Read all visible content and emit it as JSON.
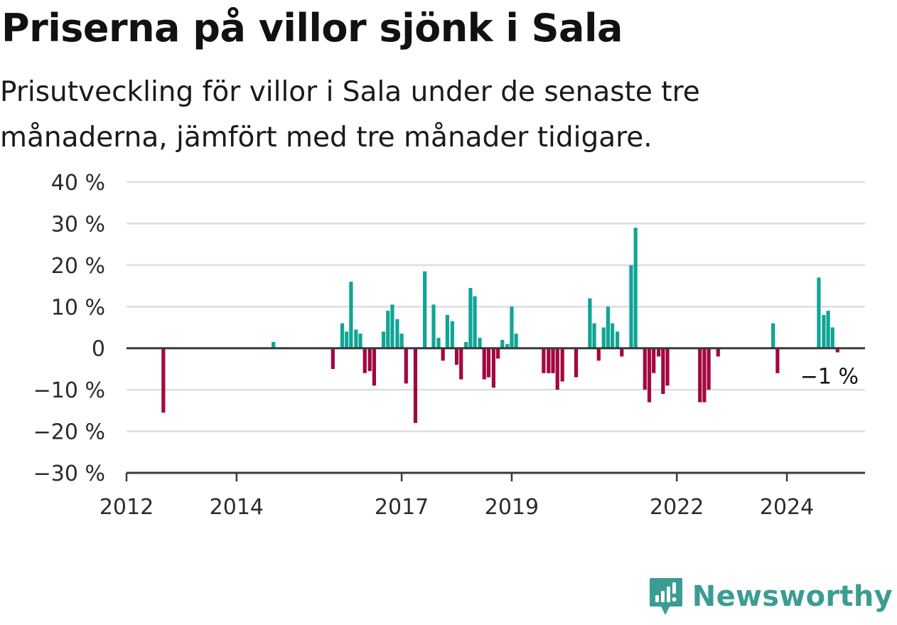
{
  "title": "Priserna på villor sjönk i Sala",
  "subtitle": "Prisutveckling för villor i Sala under de senaste tre månaderna, jämfört med tre månader tidigare.",
  "brand": {
    "name": "Newsworthy"
  },
  "colors": {
    "positive": "#0fa595",
    "negative": "#a3073f",
    "grid": "#dedede",
    "axis": "#3a3a3a",
    "brand": "#3b9c93"
  },
  "chart_data": {
    "type": "bar",
    "title": "",
    "xlabel": "",
    "ylabel": "",
    "ylim": [
      -30,
      40
    ],
    "xlim": [
      2012.0,
      2025.42
    ],
    "y_ticks": [
      40,
      30,
      20,
      10,
      0,
      -10,
      -20,
      -30
    ],
    "y_tick_labels": [
      "40 %",
      "30 %",
      "20 %",
      "10 %",
      "0",
      "−10 %",
      "−20 %",
      "−30 %"
    ],
    "x_ticks": [
      2012,
      2014,
      2017,
      2019,
      2022,
      2024
    ],
    "x_tick_labels": [
      "2012",
      "2014",
      "2017",
      "2019",
      "2022",
      "2024"
    ],
    "grid": true,
    "last_value_label": "−1 %",
    "series": [
      {
        "x": [
          2012.67,
          2014.67,
          2015.75,
          2015.92,
          2016.0,
          2016.08,
          2016.17,
          2016.25,
          2016.33,
          2016.42,
          2016.5,
          2016.67,
          2016.75,
          2016.83,
          2016.92,
          2017.0,
          2017.08,
          2017.25,
          2017.42,
          2017.58,
          2017.67,
          2017.75,
          2017.83,
          2017.92,
          2018.0,
          2018.08,
          2018.17,
          2018.25,
          2018.33,
          2018.42,
          2018.5,
          2018.58,
          2018.67,
          2018.75,
          2018.83,
          2018.92,
          2019.0,
          2019.08,
          2019.58,
          2019.67,
          2019.75,
          2019.83,
          2019.92,
          2020.17,
          2020.42,
          2020.5,
          2020.58,
          2020.67,
          2020.75,
          2020.83,
          2020.92,
          2021.0,
          2021.17,
          2021.25,
          2021.42,
          2021.5,
          2021.58,
          2021.67,
          2021.75,
          2021.83,
          2022.42,
          2022.5,
          2022.58,
          2022.75,
          2023.75,
          2023.83,
          2024.58,
          2024.67,
          2024.75,
          2024.83,
          2024.92
        ],
        "values": [
          -15.5,
          1.5,
          -5,
          6,
          4,
          16,
          4.5,
          3.5,
          -6,
          -5.5,
          -9,
          4,
          9,
          10.5,
          7,
          3.5,
          -8.5,
          -18,
          18.5,
          10.5,
          2.5,
          -3,
          8,
          6.5,
          -4,
          -7.5,
          1.5,
          14.5,
          12.5,
          2.5,
          -7.5,
          -7,
          -9.5,
          -2.5,
          2,
          1,
          10,
          3.5,
          -6,
          -6,
          -6,
          -10,
          -8,
          -7,
          12,
          6,
          -3,
          5,
          10,
          6,
          4,
          -2,
          20,
          29,
          -10,
          -13,
          -6,
          -2,
          -11,
          -9,
          -13,
          -13,
          -10,
          -2,
          6,
          -6,
          17,
          8,
          9,
          5,
          -1
        ]
      }
    ]
  }
}
